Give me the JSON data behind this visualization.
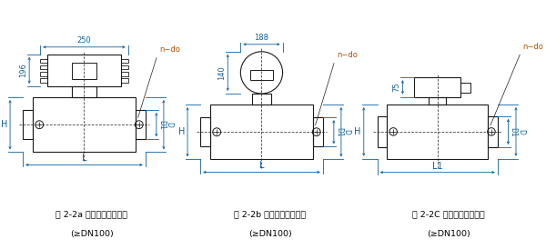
{
  "bg_color": "#ffffff",
  "line_color": "#1a1a1a",
  "dim_color": "#1060a0",
  "orange_color": "#b05000",
  "fig_labels": [
    "图 2-2a 一体型电磁流量计",
    "图 2-2b 一体型电磁流量计",
    "图 2-2C 分离型电磁流量计"
  ],
  "sub_labels": [
    "(≥DN100)",
    "(≥DN100)",
    "(≥DN100)"
  ],
  "dim_250": "250",
  "dim_188": "188",
  "dim_196": "196",
  "dim_140": "140",
  "dim_75": "75",
  "label_ndo": "n−do",
  "label_H": "H",
  "label_D1": "D1",
  "label_D": "D",
  "label_L": "L",
  "label_L1": "L1"
}
